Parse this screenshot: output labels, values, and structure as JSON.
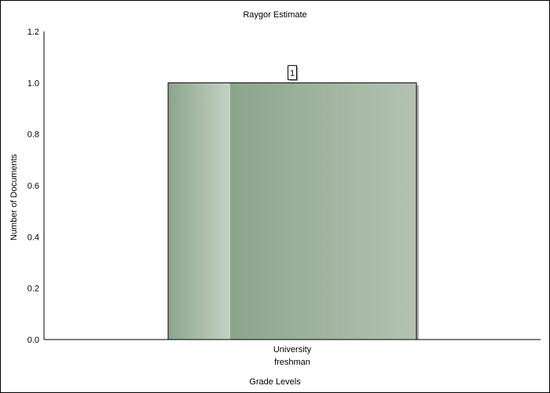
{
  "chart_data": {
    "type": "bar",
    "title": "Raygor Estimate",
    "xlabel": "Grade Levels",
    "ylabel": "Number of Documents",
    "categories": [
      [
        "University",
        "freshman"
      ]
    ],
    "values": [
      1
    ],
    "data_labels": [
      "1"
    ],
    "ylim": [
      0,
      1.2
    ],
    "y_ticks": [
      "0.0",
      "0.2",
      "0.4",
      "0.6",
      "0.8",
      "1.0",
      "1.2"
    ],
    "grid": false,
    "legend": "none",
    "colors": {
      "bar_dark": "#8ba58b",
      "bar_light": "#b4c2b4",
      "bar_highlight": "#c5d1c5",
      "shadow": "#b0b0b0",
      "axis": "#000000"
    }
  }
}
